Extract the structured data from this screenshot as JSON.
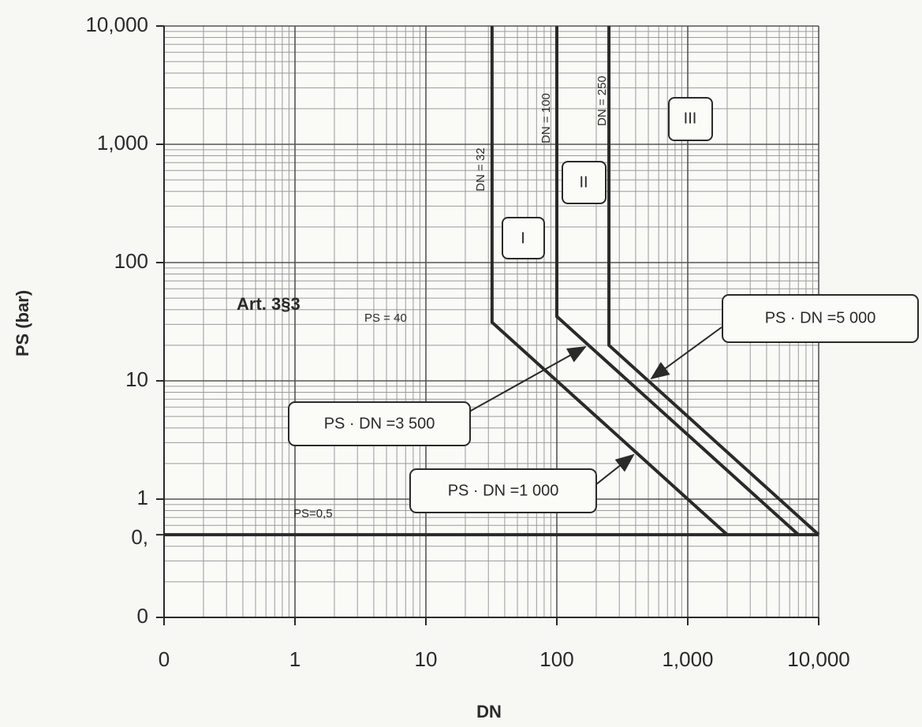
{
  "chart_data": {
    "type": "line",
    "xlabel": "DN",
    "ylabel": "PS (bar)",
    "xscale": "log",
    "yscale": "log",
    "grid": true,
    "minor_grid": true,
    "xlim": [
      0.1,
      10000
    ],
    "ylim": [
      0.1,
      10000
    ],
    "xticks": [
      {
        "value": 0.1,
        "label": "0"
      },
      1,
      10,
      100,
      {
        "value": 1000,
        "label": "1,000"
      },
      {
        "value": 10000,
        "label": "10,000"
      }
    ],
    "yticks": [
      {
        "value": 0.1,
        "label": "0"
      },
      {
        "value": 0.5,
        "label": "0,"
      },
      1,
      10,
      100,
      {
        "value": 1000,
        "label": "1,000"
      },
      {
        "value": 10000,
        "label": "10,000"
      }
    ],
    "series": [
      {
        "color": "#2a2a2a",
        "x": [
          0.1,
          10000
        ],
        "values": [
          0.5,
          0.5
        ]
      },
      {
        "color": "#2a2a2a",
        "x": [
          32,
          32,
          2000
        ],
        "values": [
          10000,
          31.25,
          0.5
        ]
      },
      {
        "color": "#2a2a2a",
        "x": [
          100,
          100,
          7000
        ],
        "values": [
          10000,
          35,
          0.5
        ]
      },
      {
        "color": "#2a2a2a",
        "x": [
          250,
          250,
          10000
        ],
        "values": [
          10000,
          20,
          0.5
        ]
      }
    ],
    "annotations": [
      "DN = 32",
      "DN = 100",
      "DN = 250",
      "I",
      "II",
      "III",
      "Art. 3§3",
      "PS = 40",
      "PS=0,5",
      "PS · DN =3 500",
      "PS · DN =1 000",
      "PS · DN =5 000"
    ]
  }
}
